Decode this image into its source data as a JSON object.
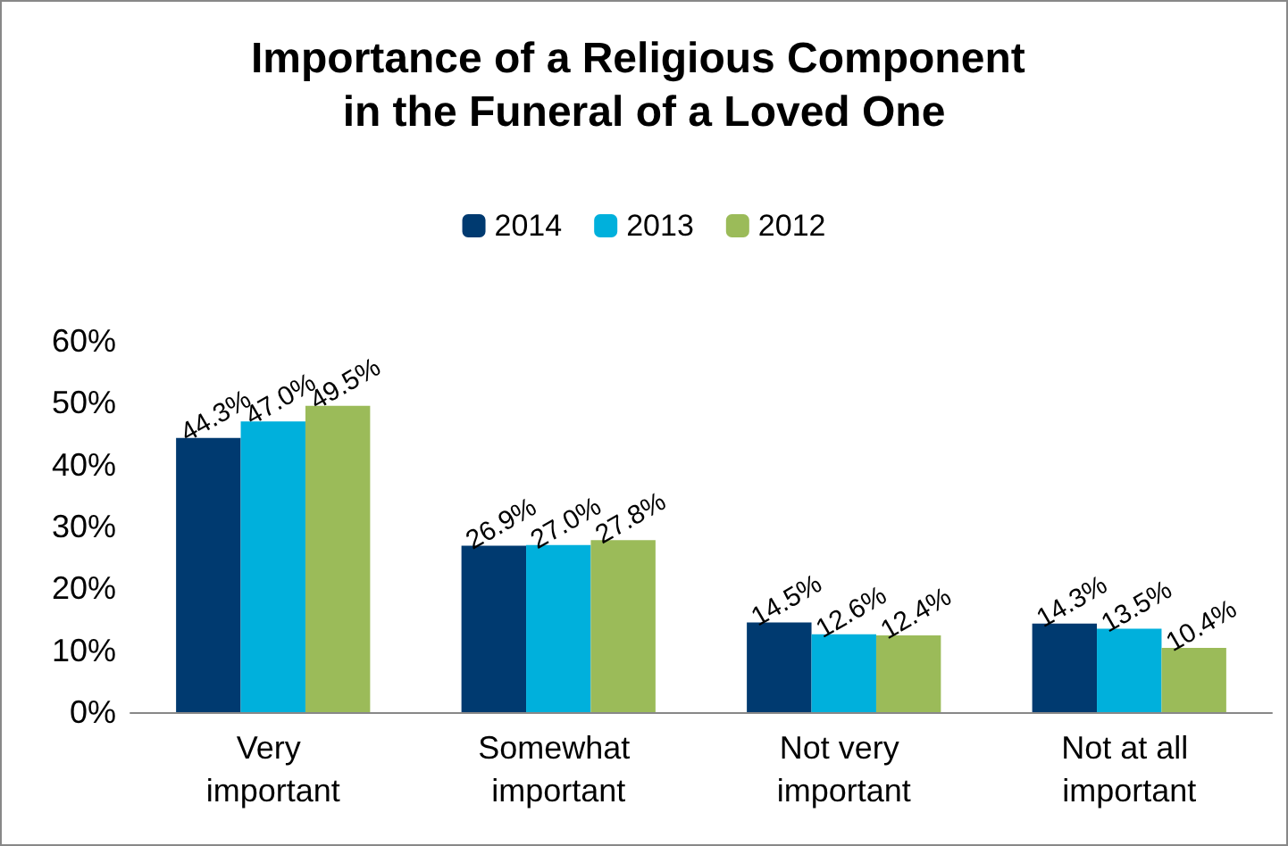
{
  "chart_data": {
    "type": "bar",
    "title": "Importance of a Religious Component in the Funeral of a Loved One",
    "categories": [
      "Very important",
      "Somewhat important",
      "Not very important",
      "Not at all important"
    ],
    "series": [
      {
        "name": "2014",
        "color": "#003a70",
        "values": [
          44.3,
          26.9,
          14.5,
          14.3
        ],
        "value_labels": [
          "44.3%",
          "26.9%",
          "14.5%",
          "14.3%"
        ]
      },
      {
        "name": "2013",
        "color": "#00b0dc",
        "values": [
          47.0,
          27.0,
          12.6,
          13.5
        ],
        "value_labels": [
          "47.0%",
          "27.0%",
          "12.6%",
          "13.5%"
        ]
      },
      {
        "name": "2012",
        "color": "#9bbb59",
        "values": [
          49.5,
          27.8,
          12.4,
          10.4
        ],
        "value_labels": [
          "49.5%",
          "27.8%",
          "12.4%",
          "10.4%"
        ]
      }
    ],
    "ylim": [
      0,
      60
    ],
    "yticks": [
      {
        "value": 0,
        "label": "0%"
      },
      {
        "value": 10,
        "label": "10%"
      },
      {
        "value": 20,
        "label": "20%"
      },
      {
        "value": 30,
        "label": "30%"
      },
      {
        "value": 40,
        "label": "40%"
      },
      {
        "value": 50,
        "label": "50%"
      },
      {
        "value": 60,
        "label": "60%"
      }
    ],
    "grid": false,
    "legend": "top"
  }
}
